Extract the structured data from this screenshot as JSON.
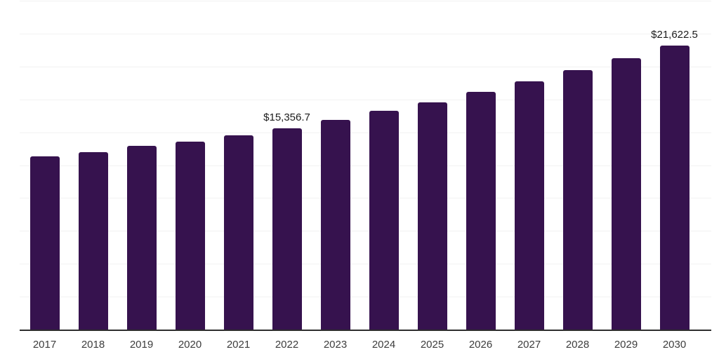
{
  "chart_data": {
    "type": "bar",
    "title": "",
    "xlabel": "",
    "ylabel": "",
    "categories": [
      "2017",
      "2018",
      "2019",
      "2020",
      "2021",
      "2022",
      "2023",
      "2024",
      "2025",
      "2026",
      "2027",
      "2028",
      "2029",
      "2030"
    ],
    "values": [
      13200,
      13560,
      14040,
      14360,
      14800,
      15356.7,
      16020,
      16680,
      17340,
      18140,
      18920,
      19770,
      20680,
      21622.5
    ],
    "data_labels": [
      {
        "category": "2022",
        "index": 5,
        "text": "$15,356.7"
      },
      {
        "category": "2030",
        "index": 13,
        "text": "$21,622.5"
      }
    ],
    "ylim": [
      0,
      25000
    ],
    "grid": "horizontal",
    "gridline_count": 10,
    "legend": "none",
    "y_axis_tick_labels": "none",
    "colors": {
      "bar": "#36124E",
      "gridline": "#f2f2f2",
      "axis_line": "#2e2e2e",
      "tick_label_text": "#3d3d3d",
      "data_label_text": "#1c1c1c",
      "background": "#ffffff"
    }
  }
}
